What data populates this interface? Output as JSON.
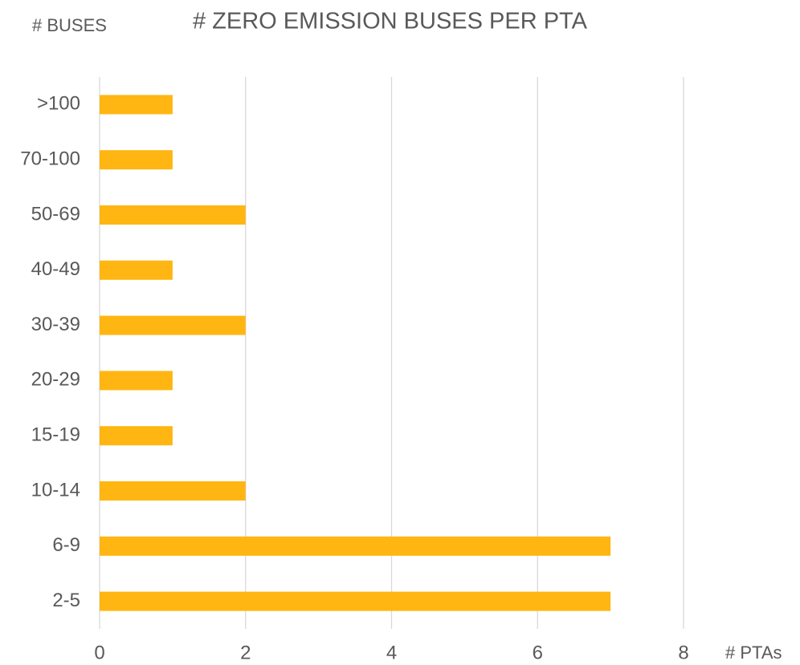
{
  "chart_data": {
    "type": "bar",
    "orientation": "horizontal",
    "title": "# ZERO EMISSION BUSES PER PTA",
    "y_label": "# BUSES",
    "x_label": "# PTAs",
    "categories": [
      ">100",
      "70-100",
      "50-69",
      "40-49",
      "30-39",
      "20-29",
      "15-19",
      "10-14",
      "6-9",
      "2-5"
    ],
    "values": [
      1,
      1,
      2,
      1,
      2,
      1,
      1,
      2,
      7,
      7
    ],
    "color": "#FFB612",
    "xlim": [
      0,
      8
    ],
    "xticks": [
      0,
      2,
      4,
      6,
      8
    ],
    "grid": true
  }
}
